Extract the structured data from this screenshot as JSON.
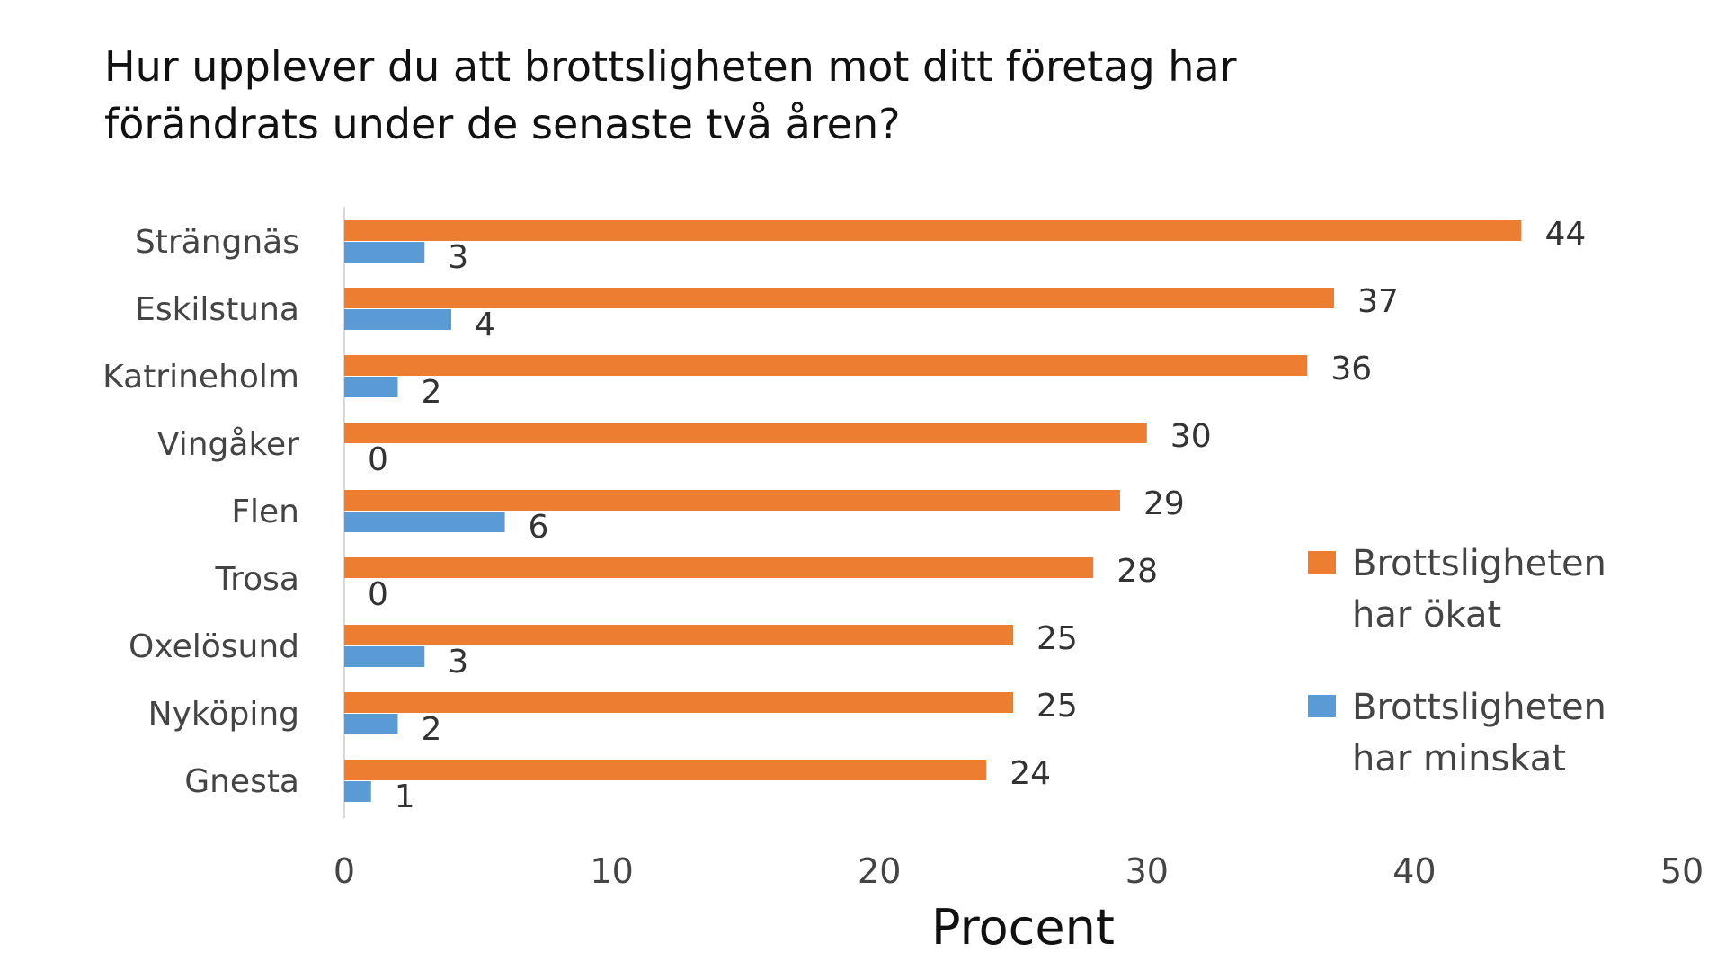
{
  "chart_data": {
    "type": "bar",
    "orientation": "horizontal",
    "title": "Hur upplever du att brottsligheten mot ditt företag har förändrats under de senaste två åren?",
    "title_lines": [
      "Hur upplever du att brottsligheten mot ditt företag har",
      "förändrats under de senaste två åren?"
    ],
    "xlabel": "Procent",
    "ylabel": "",
    "xlim": [
      0,
      50
    ],
    "xticks": [
      0,
      10,
      20,
      30,
      40,
      50
    ],
    "grid": false,
    "legend_position": "right",
    "categories": [
      "Strängnäs",
      "Eskilstuna",
      "Katrineholm",
      "Vingåker",
      "Flen",
      "Trosa",
      "Oxelösund",
      "Nyköping",
      "Gnesta"
    ],
    "series": [
      {
        "name": "Brottsligheten har ökat",
        "name_lines": [
          "Brottsligheten",
          "har ökat"
        ],
        "color": "#ED7D31",
        "values": [
          44,
          37,
          36,
          30,
          29,
          28,
          25,
          25,
          24
        ]
      },
      {
        "name": "Brottsligheten har minskat",
        "name_lines": [
          "Brottsligheten",
          "har minskat"
        ],
        "color": "#5B9BD5",
        "values": [
          3,
          4,
          2,
          0,
          6,
          0,
          3,
          2,
          1
        ]
      }
    ]
  }
}
